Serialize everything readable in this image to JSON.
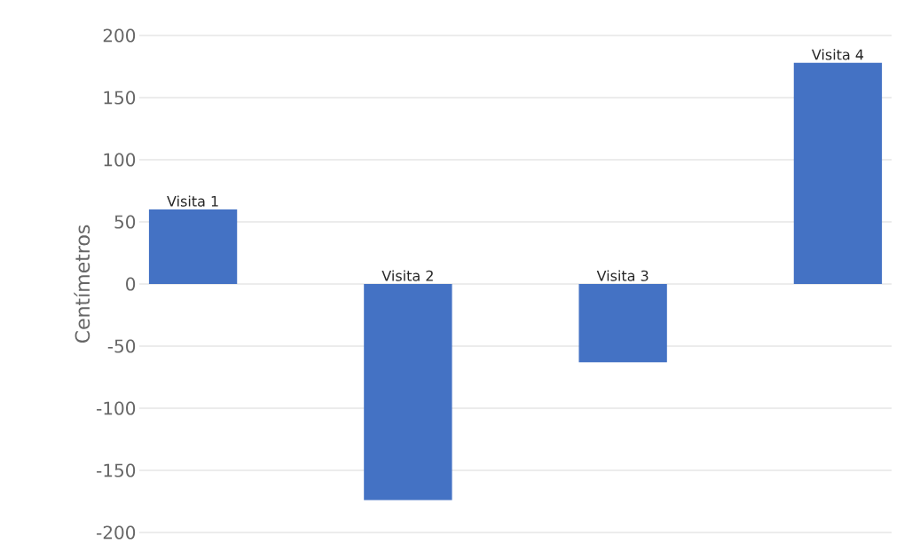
{
  "chart_data": {
    "type": "bar",
    "categories": [
      "Visita 1",
      "Visita 2",
      "Visita 3",
      "Visita 4"
    ],
    "values": [
      60,
      -174,
      -63,
      178
    ],
    "color": "#4472c4",
    "ylabel": "Centímetros",
    "ylim": [
      -200,
      200
    ],
    "yticks": [
      -200,
      -150,
      -100,
      -50,
      0,
      50,
      100,
      150,
      200
    ],
    "grid": "y"
  }
}
